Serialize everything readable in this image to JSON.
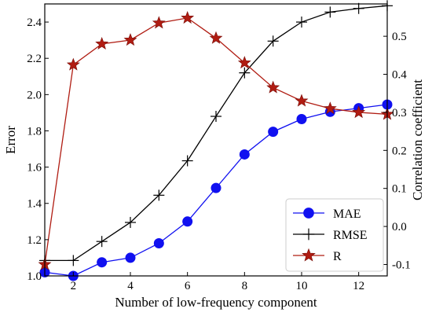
{
  "chart_data": {
    "type": "line",
    "x": [
      1,
      2,
      3,
      4,
      5,
      6,
      7,
      8,
      9,
      10,
      11,
      12,
      13
    ],
    "xlabel": "Number of low-frequency component",
    "ylabel_left": "Error",
    "ylabel_right": "Correlation coefficient",
    "xlim": [
      1,
      13
    ],
    "ylim_left": [
      1.0,
      2.5
    ],
    "ylim_right": [
      -0.13,
      0.585
    ],
    "xticks": [
      2,
      4,
      6,
      8,
      10,
      12
    ],
    "yticks_left": [
      1.0,
      1.2,
      1.4,
      1.6,
      1.8,
      2.0,
      2.2,
      2.4
    ],
    "yticks_right": [
      -0.1,
      0.0,
      0.1,
      0.2,
      0.3,
      0.4,
      0.5
    ],
    "xtick_labels": [
      "2",
      "4",
      "6",
      "8",
      "10",
      "12"
    ],
    "ytick_labels_left": [
      "1.0",
      "1.2",
      "1.4",
      "1.6",
      "1.8",
      "2.0",
      "2.2",
      "2.4"
    ],
    "ytick_labels_right": [
      "-0.1",
      "0.0",
      "0.1",
      "0.2",
      "0.3",
      "0.4",
      "0.5"
    ],
    "grid": false,
    "legend_position": "lower-right",
    "series": [
      {
        "name": "MAE",
        "axis": "left",
        "color": "#1010f0",
        "marker": "circle",
        "values": [
          1.02,
          1.0,
          1.075,
          1.1,
          1.18,
          1.3,
          1.485,
          1.67,
          1.795,
          1.865,
          1.905,
          1.925,
          1.945
        ]
      },
      {
        "name": "RMSE",
        "axis": "left",
        "color": "#000000",
        "marker": "plus",
        "values": [
          1.085,
          1.085,
          1.19,
          1.295,
          1.445,
          1.635,
          1.88,
          2.12,
          2.295,
          2.4,
          2.455,
          2.475,
          2.49
        ]
      },
      {
        "name": "R",
        "axis": "right",
        "color": "#b01c12",
        "marker": "star",
        "values": [
          -0.1,
          0.425,
          0.48,
          0.49,
          0.535,
          0.548,
          0.495,
          0.43,
          0.365,
          0.33,
          0.31,
          0.3,
          0.295
        ]
      }
    ]
  }
}
